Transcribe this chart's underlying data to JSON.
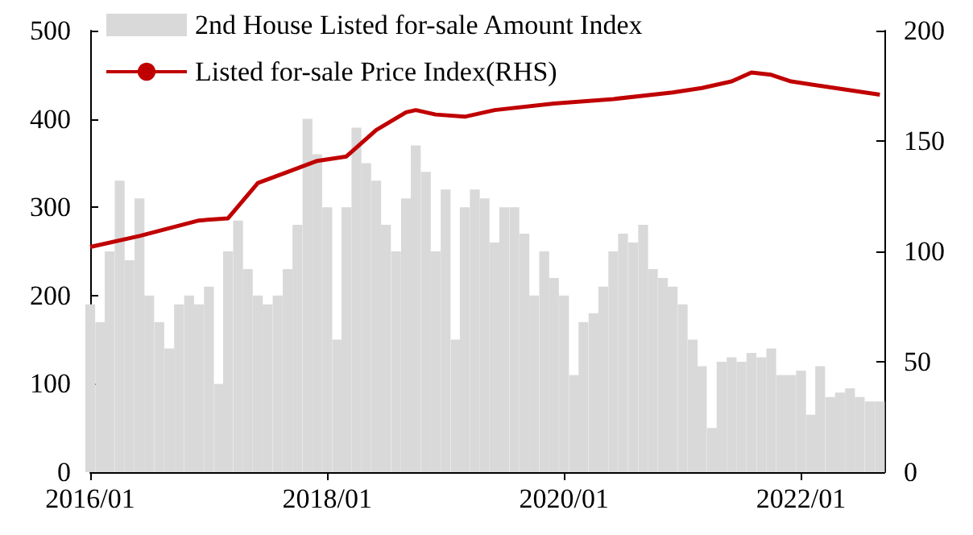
{
  "chart_data": {
    "type": "bar",
    "x": [
      "2016-01",
      "2016-02",
      "2016-03",
      "2016-04",
      "2016-05",
      "2016-06",
      "2016-07",
      "2016-08",
      "2016-09",
      "2016-10",
      "2016-11",
      "2016-12",
      "2017-01",
      "2017-02",
      "2017-03",
      "2017-04",
      "2017-05",
      "2017-06",
      "2017-07",
      "2017-08",
      "2017-09",
      "2017-10",
      "2017-11",
      "2017-12",
      "2018-01",
      "2018-02",
      "2018-03",
      "2018-04",
      "2018-05",
      "2018-06",
      "2018-07",
      "2018-08",
      "2018-09",
      "2018-10",
      "2018-11",
      "2018-12",
      "2019-01",
      "2019-02",
      "2019-03",
      "2019-04",
      "2019-05",
      "2019-06",
      "2019-07",
      "2019-08",
      "2019-09",
      "2019-10",
      "2019-11",
      "2019-12",
      "2020-01",
      "2020-02",
      "2020-03",
      "2020-04",
      "2020-05",
      "2020-06",
      "2020-07",
      "2020-08",
      "2020-09",
      "2020-10",
      "2020-11",
      "2020-12",
      "2021-01",
      "2021-02",
      "2021-03",
      "2021-04",
      "2021-05",
      "2021-06",
      "2021-07",
      "2021-08",
      "2021-09",
      "2021-10",
      "2021-11",
      "2021-12",
      "2022-01",
      "2022-02",
      "2022-03",
      "2022-04",
      "2022-05",
      "2022-06",
      "2022-07",
      "2022-08",
      "2022-09"
    ],
    "series": [
      {
        "name": "2nd House Listed for-sale Amount Index",
        "color": "#d9d9d9",
        "values": [
          190,
          170,
          250,
          330,
          240,
          310,
          200,
          170,
          140,
          190,
          200,
          190,
          210,
          100,
          250,
          285,
          230,
          200,
          190,
          200,
          230,
          280,
          400,
          360,
          300,
          150,
          300,
          390,
          350,
          330,
          280,
          250,
          310,
          370,
          340,
          250,
          320,
          150,
          300,
          320,
          310,
          260,
          300,
          300,
          270,
          200,
          250,
          220,
          200,
          110,
          170,
          180,
          210,
          250,
          270,
          260,
          280,
          230,
          220,
          210,
          190,
          150,
          120,
          50,
          125,
          130,
          125,
          135,
          130,
          140,
          110,
          110,
          115,
          65,
          120,
          85,
          90,
          95,
          85,
          80,
          80
        ]
      },
      {
        "name": "Listed for-sale Price Index(RHS)",
        "type": "line",
        "axis": "y2",
        "color": "#c00000",
        "x": [
          "2016-01",
          "2016-06",
          "2016-12",
          "2017-03",
          "2017-06",
          "2017-09",
          "2017-12",
          "2018-03",
          "2018-06",
          "2018-09",
          "2018-10",
          "2018-12",
          "2019-03",
          "2019-06",
          "2019-12",
          "2020-06",
          "2020-12",
          "2021-03",
          "2021-06",
          "2021-08",
          "2021-10",
          "2021-12",
          "2022-03",
          "2022-06",
          "2022-09"
        ],
        "values": [
          102,
          107,
          114,
          115,
          131,
          136,
          141,
          143,
          155,
          163,
          164,
          162,
          161,
          164,
          167,
          169,
          172,
          174,
          177,
          181,
          180,
          177,
          175,
          173,
          171
        ]
      }
    ],
    "xlim": [
      "2016-01",
      "2022-09-15"
    ],
    "xticks": [
      {
        "value": "2016-01",
        "label": "2016/01"
      },
      {
        "value": "2018-01",
        "label": "2018/01"
      },
      {
        "value": "2020-01",
        "label": "2020/01"
      },
      {
        "value": "2022-01",
        "label": "2022/01"
      }
    ],
    "ylim": [
      0,
      500
    ],
    "yticks": [
      0,
      100,
      200,
      300,
      400,
      500
    ],
    "y2lim": [
      0,
      200
    ],
    "y2ticks": [
      0,
      50,
      100,
      150,
      200
    ],
    "legend": "top left",
    "grid": false
  }
}
